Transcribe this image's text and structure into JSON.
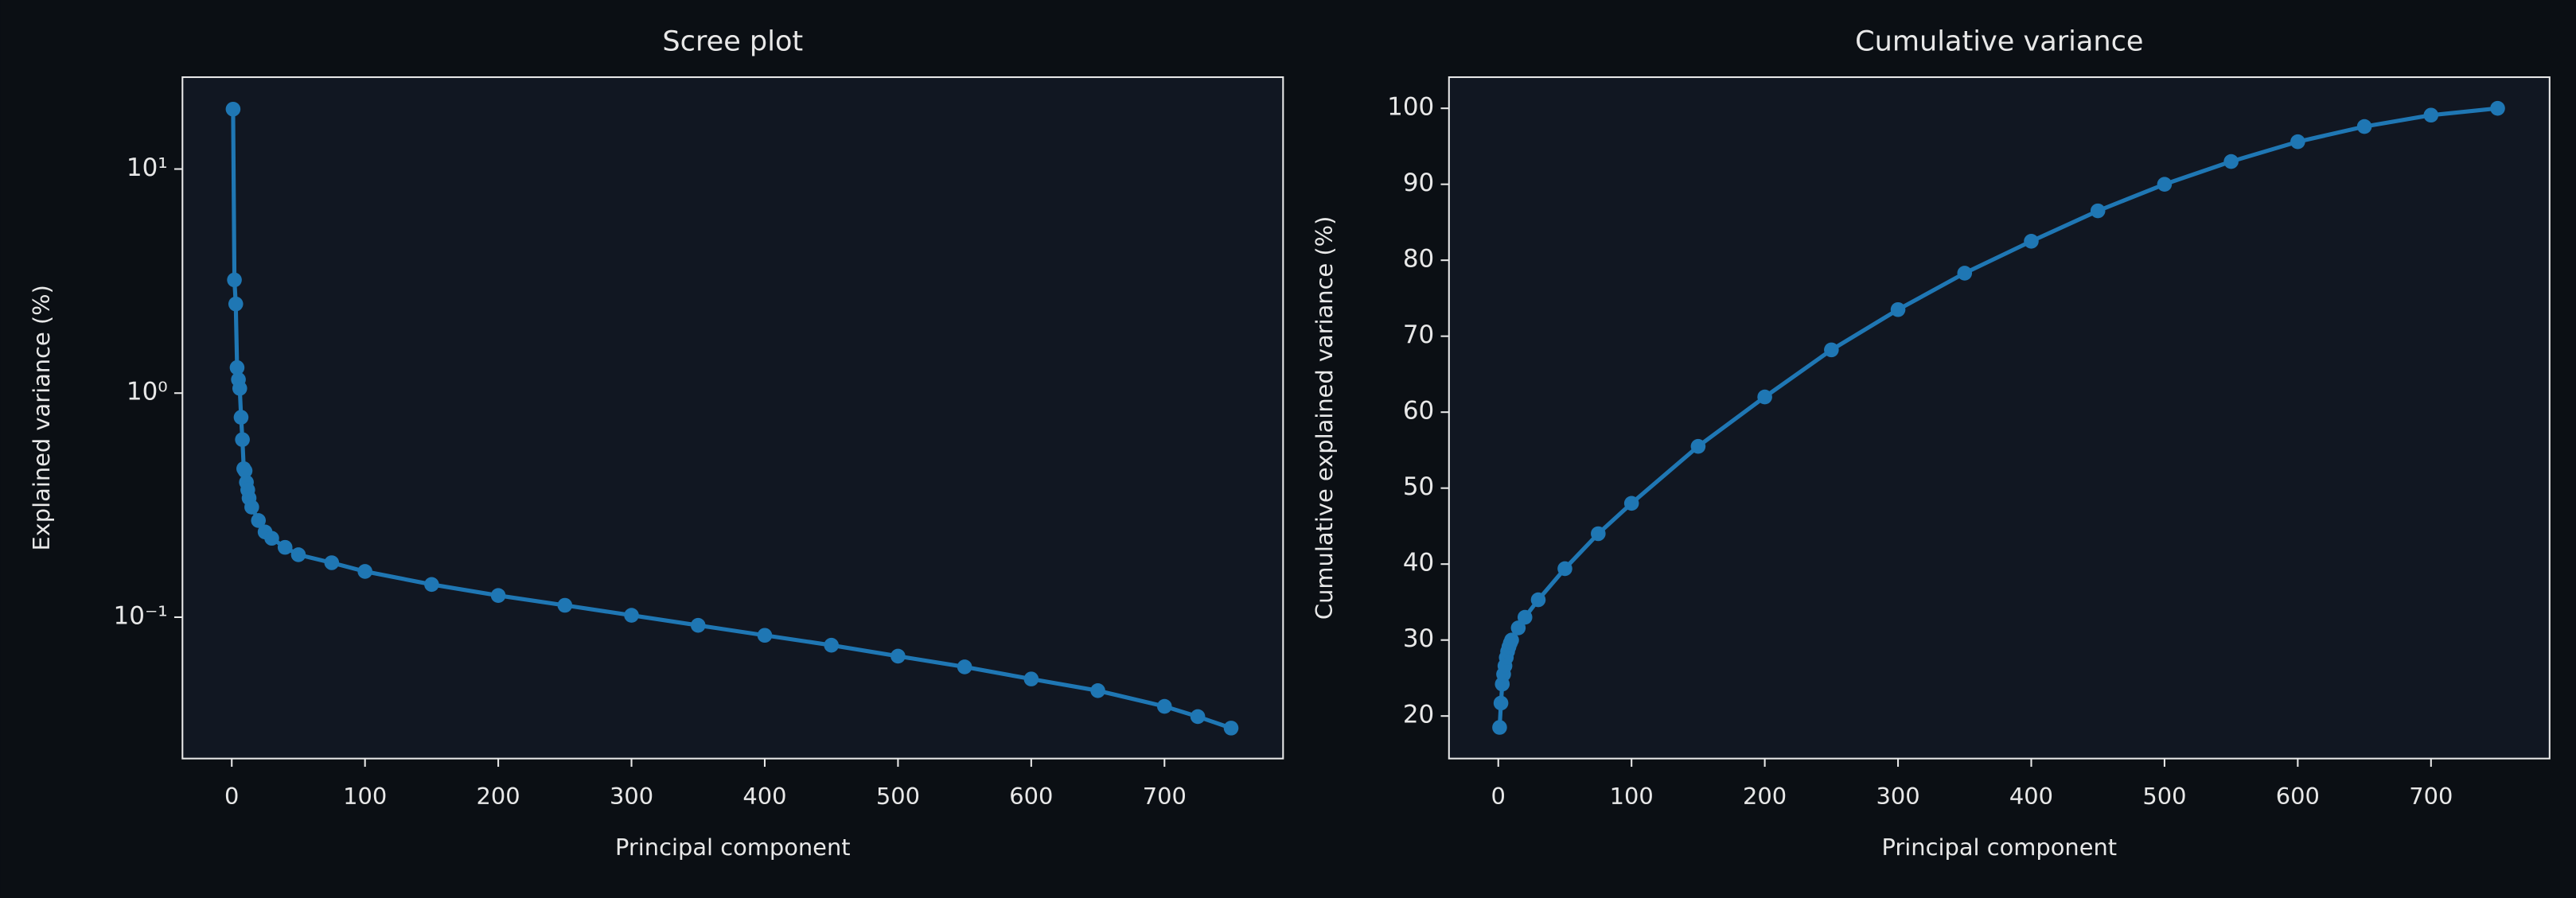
{
  "chart_data": [
    {
      "type": "line",
      "title": "Scree plot",
      "xlabel": "Principal component",
      "ylabel": "Explained variance (%)",
      "yscale": "log",
      "color": "#1f77b4",
      "x": [
        1,
        2,
        3,
        4,
        5,
        6,
        7,
        8,
        9,
        10,
        11,
        12,
        13,
        15,
        20,
        25,
        30,
        40,
        50,
        75,
        100,
        150,
        200,
        250,
        300,
        350,
        400,
        450,
        500,
        550,
        600,
        650,
        700,
        725,
        750
      ],
      "values": [
        18.5,
        3.2,
        2.5,
        1.3,
        1.15,
        1.05,
        0.78,
        0.62,
        0.46,
        0.45,
        0.4,
        0.37,
        0.34,
        0.31,
        0.27,
        0.24,
        0.225,
        0.205,
        0.19,
        0.175,
        0.16,
        0.14,
        0.125,
        0.113,
        0.102,
        0.092,
        0.083,
        0.075,
        0.067,
        0.06,
        0.053,
        0.047,
        0.04,
        0.036,
        0.032
      ],
      "xlim": [
        -37,
        789
      ],
      "xticks": [
        0,
        100,
        200,
        300,
        400,
        500,
        600,
        700
      ],
      "ylim": [
        0.0234,
        25.7
      ],
      "yticks": [
        {
          "value": 0.1,
          "label": "10⁻¹"
        },
        {
          "value": 1,
          "label": "10⁰"
        },
        {
          "value": 10,
          "label": "10¹"
        }
      ]
    },
    {
      "type": "line",
      "title": "Cumulative variance",
      "xlabel": "Principal component",
      "ylabel": "Cumulative explained variance (%)",
      "yscale": "linear",
      "color": "#1f77b4",
      "x": [
        1,
        2,
        3,
        4,
        5,
        6,
        7,
        8,
        9,
        10,
        15,
        20,
        30,
        50,
        75,
        100,
        150,
        200,
        250,
        300,
        350,
        400,
        450,
        500,
        550,
        600,
        650,
        700,
        750
      ],
      "values": [
        18.5,
        21.7,
        24.2,
        25.5,
        26.6,
        27.7,
        28.5,
        29.1,
        29.6,
        30,
        31.6,
        33,
        35.3,
        39.4,
        44,
        48,
        55.5,
        62,
        68.2,
        73.5,
        78.3,
        82.5,
        86.5,
        90,
        93,
        95.6,
        97.6,
        99.1,
        100
      ],
      "xlim": [
        -37,
        789
      ],
      "xticks": [
        0,
        100,
        200,
        300,
        400,
        500,
        600,
        700
      ],
      "ylim": [
        14.4,
        104.1
      ],
      "yticks": [
        20,
        30,
        40,
        50,
        60,
        70,
        80,
        90,
        100
      ]
    }
  ]
}
